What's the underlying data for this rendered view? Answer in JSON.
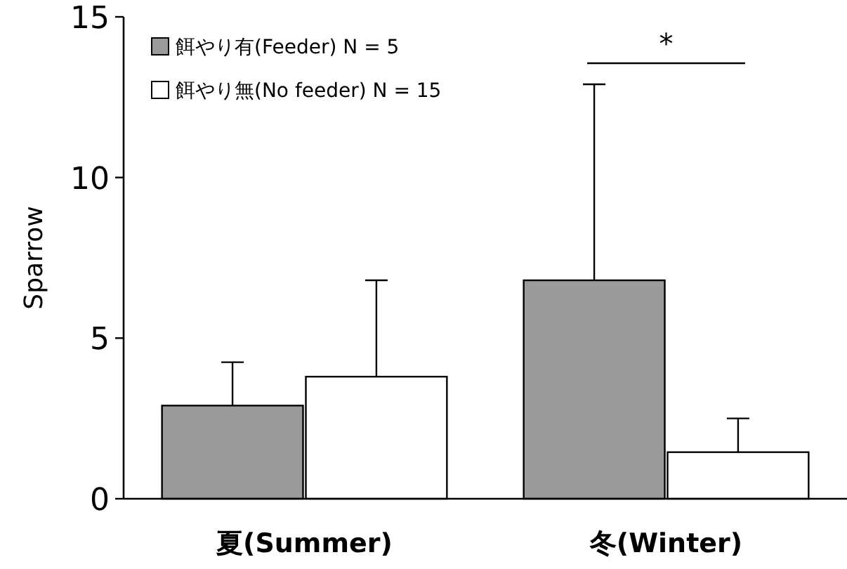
{
  "chart_data": {
    "type": "bar",
    "ylabel": "Sparrow",
    "categories": [
      "夏(Summer)",
      "冬(Winter)"
    ],
    "series": [
      {
        "name": "餌やり有(Feeder) N = 5",
        "color": "#9a9a9a",
        "values": [
          2.9,
          6.8
        ],
        "errors": [
          [
            2.9,
            4.25
          ],
          [
            6.8,
            12.9
          ]
        ]
      },
      {
        "name": "餌やり無(No feeder) N = 15",
        "color": "#ffffff",
        "values": [
          3.8,
          1.45
        ],
        "errors": [
          [
            3.8,
            6.8
          ],
          [
            1.45,
            2.5
          ]
        ]
      }
    ],
    "ylim": [
      0,
      15
    ],
    "yticks": [
      0,
      5,
      10,
      15
    ],
    "legend": "top left",
    "annotations": [
      "*"
    ]
  }
}
